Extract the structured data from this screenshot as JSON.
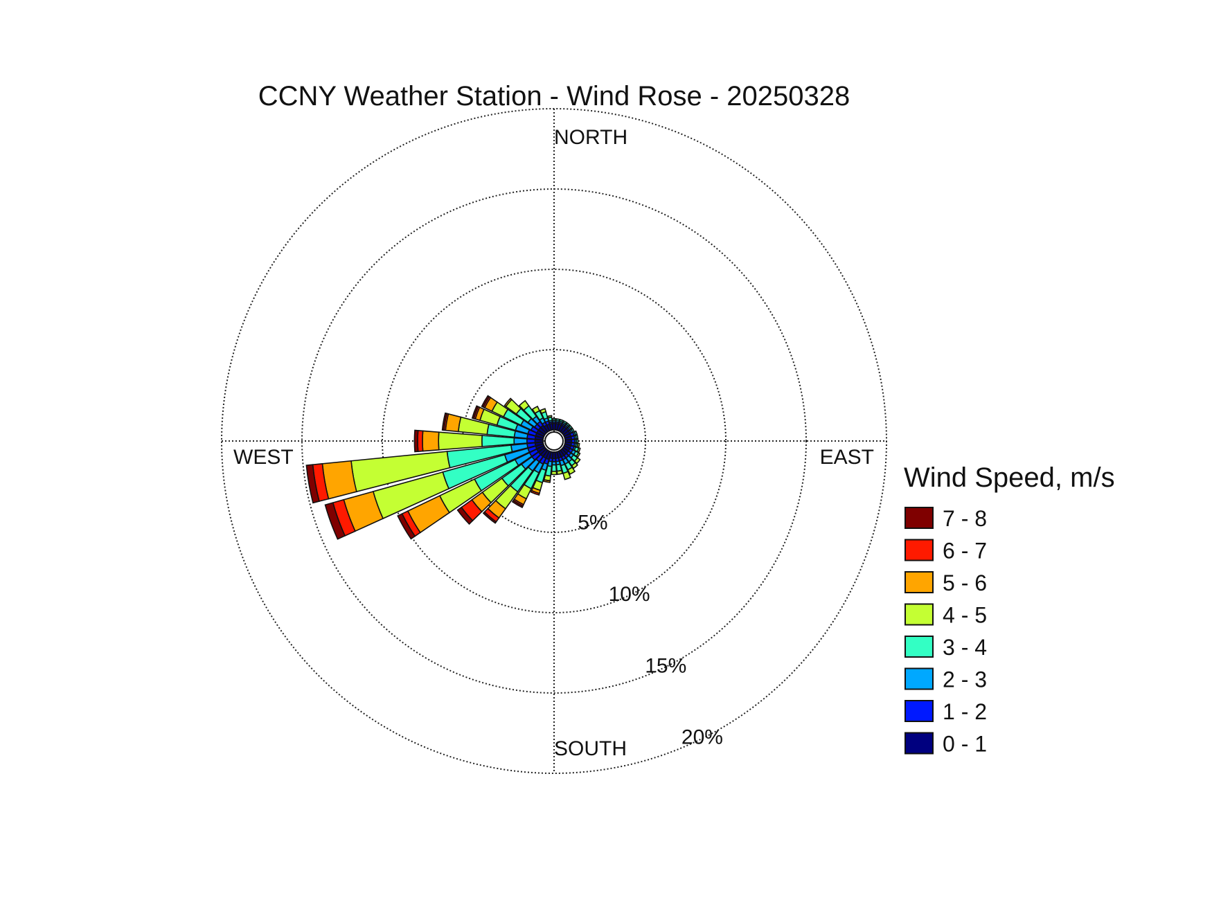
{
  "chart_data": {
    "type": "wind-rose",
    "title": "CCNY Weather Station - Wind Rose - 20250328",
    "directions_labels": {
      "north": "NORTH",
      "south": "SOUTH",
      "east": "EAST",
      "west": "WEST"
    },
    "ring_labels": [
      "5%",
      "10%",
      "15%",
      "20%"
    ],
    "ring_values": [
      5,
      10,
      15,
      20
    ],
    "rmax": 20,
    "bin_width_deg": 10,
    "legend": {
      "title": "Wind Speed, m/s",
      "placement": "right",
      "bins": [
        {
          "label": "0 - 1",
          "color": "#00007F"
        },
        {
          "label": "1 - 2",
          "color": "#0019FF"
        },
        {
          "label": "2 - 3",
          "color": "#00A8FF"
        },
        {
          "label": "3 - 4",
          "color": "#33FFC4"
        },
        {
          "label": "4 - 5",
          "color": "#C4FF33"
        },
        {
          "label": "5 - 6",
          "color": "#FFA500"
        },
        {
          "label": "6 - 7",
          "color": "#FF1A00"
        },
        {
          "label": "7 - 8",
          "color": "#7F0000"
        }
      ]
    },
    "series": [
      {
        "direction_deg": 250,
        "cumulative": [
          0.5,
          1.0,
          2.5,
          6.5,
          11.0,
          12.9,
          13.6,
          14.1
        ]
      },
      {
        "direction_deg": 260,
        "cumulative": [
          0.5,
          1.0,
          2.0,
          6.0,
          12.0,
          13.8,
          14.4,
          14.8
        ]
      },
      {
        "direction_deg": 240,
        "cumulative": [
          0.5,
          1.0,
          2.0,
          4.8,
          7.2,
          9.4,
          9.8,
          10.1
        ]
      },
      {
        "direction_deg": 270,
        "cumulative": [
          0.5,
          1.0,
          1.8,
          3.8,
          6.5,
          7.5,
          7.8,
          8.0
        ]
      },
      {
        "direction_deg": 280,
        "cumulative": [
          0.5,
          1.0,
          1.8,
          3.5,
          5.3,
          6.1,
          6.2,
          6.3
        ]
      },
      {
        "direction_deg": 290,
        "cumulative": [
          0.5,
          1.0,
          1.8,
          3.0,
          4.1,
          4.4,
          4.5,
          4.6
        ]
      },
      {
        "direction_deg": 230,
        "cumulative": [
          0.5,
          1.0,
          1.8,
          3.3,
          4.8,
          5.6,
          6.4,
          6.7
        ]
      },
      {
        "direction_deg": 220,
        "cumulative": [
          0.5,
          0.9,
          1.6,
          3.2,
          4.5,
          5.2,
          5.5,
          5.6
        ]
      },
      {
        "direction_deg": 210,
        "cumulative": [
          0.5,
          0.9,
          1.5,
          2.6,
          3.3,
          3.7,
          3.8,
          3.9
        ]
      },
      {
        "direction_deg": 200,
        "cumulative": [
          0.5,
          0.8,
          1.2,
          2.0,
          2.5,
          2.7,
          2.8,
          2.8
        ]
      },
      {
        "direction_deg": 190,
        "cumulative": [
          0.4,
          0.6,
          0.9,
          1.5,
          1.8,
          1.9,
          1.9,
          1.9
        ]
      },
      {
        "direction_deg": 180,
        "cumulative": [
          0.4,
          0.6,
          0.8,
          1.2,
          1.4,
          1.4,
          1.4,
          1.4
        ]
      },
      {
        "direction_deg": 170,
        "cumulative": [
          0.4,
          0.6,
          0.8,
          1.2,
          1.4,
          1.4,
          1.4,
          1.4
        ]
      },
      {
        "direction_deg": 160,
        "cumulative": [
          0.4,
          0.6,
          0.9,
          1.4,
          1.8,
          1.8,
          1.8,
          1.8
        ]
      },
      {
        "direction_deg": 150,
        "cumulative": [
          0.4,
          0.6,
          0.9,
          1.3,
          1.6,
          1.6,
          1.6,
          1.6
        ]
      },
      {
        "direction_deg": 140,
        "cumulative": [
          0.4,
          0.6,
          0.9,
          1.2,
          1.4,
          1.4,
          1.4,
          1.4
        ]
      },
      {
        "direction_deg": 130,
        "cumulative": [
          0.4,
          0.6,
          0.8,
          1.1,
          1.3,
          1.3,
          1.3,
          1.3
        ]
      },
      {
        "direction_deg": 120,
        "cumulative": [
          0.4,
          0.6,
          0.8,
          1.0,
          1.1,
          1.1,
          1.1,
          1.1
        ]
      },
      {
        "direction_deg": 110,
        "cumulative": [
          0.4,
          0.6,
          0.7,
          0.9,
          1.0,
          1.0,
          1.0,
          1.0
        ]
      },
      {
        "direction_deg": 100,
        "cumulative": [
          0.4,
          0.6,
          0.7,
          0.8,
          0.9,
          0.9,
          0.9,
          0.9
        ]
      },
      {
        "direction_deg": 90,
        "cumulative": [
          0.4,
          0.6,
          0.7,
          0.8,
          0.8,
          0.8,
          0.8,
          0.8
        ]
      },
      {
        "direction_deg": 80,
        "cumulative": [
          0.4,
          0.6,
          0.7,
          0.8,
          0.8,
          0.8,
          0.8,
          0.8
        ]
      },
      {
        "direction_deg": 70,
        "cumulative": [
          0.4,
          0.6,
          0.7,
          0.8,
          0.8,
          0.8,
          0.8,
          0.8
        ]
      },
      {
        "direction_deg": 60,
        "cumulative": [
          0.4,
          0.5,
          0.6,
          0.7,
          0.7,
          0.7,
          0.7,
          0.7
        ]
      },
      {
        "direction_deg": 50,
        "cumulative": [
          0.4,
          0.5,
          0.6,
          0.7,
          0.7,
          0.7,
          0.7,
          0.7
        ]
      },
      {
        "direction_deg": 40,
        "cumulative": [
          0.4,
          0.5,
          0.6,
          0.7,
          0.7,
          0.7,
          0.7,
          0.7
        ]
      },
      {
        "direction_deg": 30,
        "cumulative": [
          0.4,
          0.5,
          0.6,
          0.7,
          0.7,
          0.7,
          0.7,
          0.7
        ]
      },
      {
        "direction_deg": 20,
        "cumulative": [
          0.4,
          0.5,
          0.6,
          0.7,
          0.7,
          0.7,
          0.7,
          0.7
        ]
      },
      {
        "direction_deg": 10,
        "cumulative": [
          0.4,
          0.5,
          0.6,
          0.7,
          0.7,
          0.7,
          0.7,
          0.7
        ]
      },
      {
        "direction_deg": 0,
        "cumulative": [
          0.4,
          0.5,
          0.6,
          0.7,
          0.7,
          0.7,
          0.7,
          0.7
        ]
      },
      {
        "direction_deg": 350,
        "cumulative": [
          0.4,
          0.5,
          0.6,
          0.8,
          0.9,
          0.9,
          0.9,
          0.9
        ]
      },
      {
        "direction_deg": 340,
        "cumulative": [
          0.4,
          0.6,
          0.8,
          1.2,
          1.4,
          1.4,
          1.4,
          1.4
        ]
      },
      {
        "direction_deg": 330,
        "cumulative": [
          0.4,
          0.6,
          0.9,
          1.4,
          1.7,
          1.7,
          1.7,
          1.7
        ]
      },
      {
        "direction_deg": 320,
        "cumulative": [
          0.5,
          0.8,
          1.2,
          2.0,
          2.4,
          2.4,
          2.4,
          2.4
        ]
      },
      {
        "direction_deg": 310,
        "cumulative": [
          0.5,
          0.8,
          1.3,
          2.2,
          3.0,
          3.1,
          3.1,
          3.1
        ]
      },
      {
        "direction_deg": 300,
        "cumulative": [
          0.5,
          0.9,
          1.6,
          2.8,
          3.6,
          4.1,
          4.2,
          4.3
        ]
      }
    ]
  }
}
